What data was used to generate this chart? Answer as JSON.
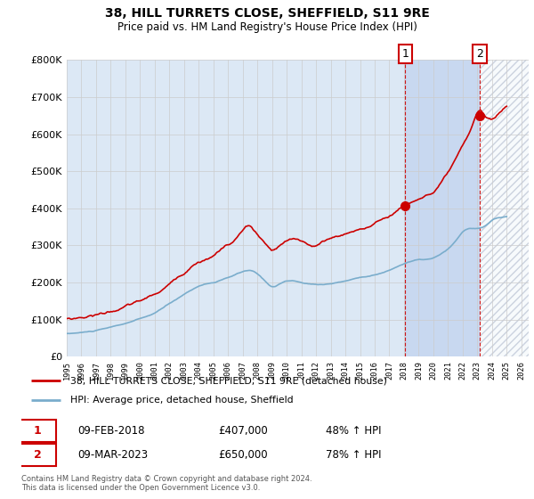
{
  "title": "38, HILL TURRETS CLOSE, SHEFFIELD, S11 9RE",
  "subtitle": "Price paid vs. HM Land Registry's House Price Index (HPI)",
  "ylim": [
    0,
    800000
  ],
  "yticks": [
    0,
    100000,
    200000,
    300000,
    400000,
    500000,
    600000,
    700000,
    800000
  ],
  "xlim_start": 1995.0,
  "xlim_end": 2026.5,
  "property_color": "#cc0000",
  "hpi_color": "#7aadcc",
  "sale1_year": 2018.08,
  "sale1_price": 407000,
  "sale1_label": "1",
  "sale1_date": "09-FEB-2018",
  "sale1_pct": "48% ↑ HPI",
  "sale2_year": 2023.17,
  "sale2_price": 650000,
  "sale2_label": "2",
  "sale2_date": "09-MAR-2023",
  "sale2_pct": "78% ↑ HPI",
  "legend_property": "38, HILL TURRETS CLOSE, SHEFFIELD, S11 9RE (detached house)",
  "legend_hpi": "HPI: Average price, detached house, Sheffield",
  "footer1": "Contains HM Land Registry data © Crown copyright and database right 2024.",
  "footer2": "This data is licensed under the Open Government Licence v3.0.",
  "background_color": "#dce8f5",
  "plot_bg": "#ffffff",
  "highlight_color": "#c8d8f0",
  "hatch_color": "#c0c8d8"
}
